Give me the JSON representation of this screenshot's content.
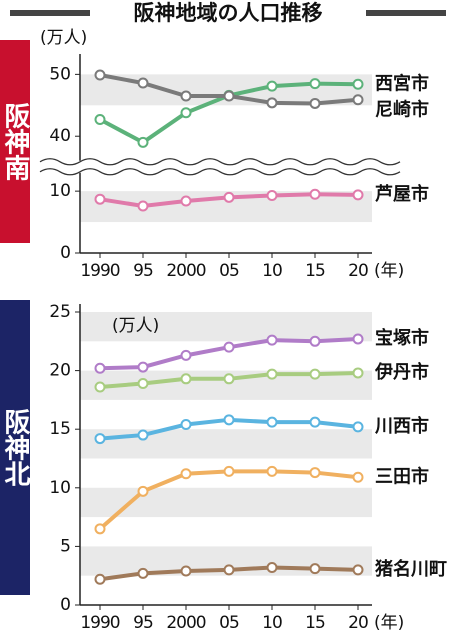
{
  "title": "阪神地域の人口推移",
  "chart_data": [
    {
      "type": "line",
      "panel_label": "阪神南",
      "y_label": "(万人)",
      "x_label": "(年)",
      "categories": [
        "1990",
        "95",
        "2000",
        "05",
        "10",
        "15",
        "20"
      ],
      "ylim": [
        0,
        52
      ],
      "axis_break": [
        12,
        37
      ],
      "yticks": [
        0,
        10,
        40,
        50
      ],
      "grid": "bands",
      "panel_color": "#c8102e",
      "series": [
        {
          "name": "西宮市",
          "color": "#5cb27a",
          "values": [
            42.7,
            39.0,
            43.8,
            46.6,
            48.1,
            48.5,
            48.4
          ]
        },
        {
          "name": "尼崎市",
          "color": "#7a7a7a",
          "values": [
            49.9,
            48.6,
            46.5,
            46.5,
            45.4,
            45.3,
            45.9
          ]
        },
        {
          "name": "芦屋市",
          "color": "#e07aaa",
          "values": [
            8.7,
            7.6,
            8.4,
            9.0,
            9.3,
            9.5,
            9.4
          ]
        }
      ]
    },
    {
      "type": "line",
      "panel_label": "阪神北",
      "y_label": "(万人)",
      "x_label": "(年)",
      "categories": [
        "1990",
        "95",
        "2000",
        "05",
        "10",
        "15",
        "20"
      ],
      "ylim": [
        0,
        25
      ],
      "yticks": [
        0,
        5,
        10,
        15,
        20,
        25
      ],
      "grid": "bands",
      "panel_color": "#1c2466",
      "series": [
        {
          "name": "宝塚市",
          "color": "#b07cc8",
          "values": [
            20.2,
            20.3,
            21.3,
            22.0,
            22.6,
            22.5,
            22.7
          ]
        },
        {
          "name": "伊丹市",
          "color": "#a8cc80",
          "values": [
            18.6,
            18.9,
            19.3,
            19.3,
            19.7,
            19.7,
            19.8
          ]
        },
        {
          "name": "川西市",
          "color": "#5ab4e0",
          "values": [
            14.2,
            14.5,
            15.4,
            15.8,
            15.6,
            15.6,
            15.2
          ]
        },
        {
          "name": "三田市",
          "color": "#f0b060",
          "values": [
            6.5,
            9.7,
            11.2,
            11.4,
            11.4,
            11.3,
            10.9
          ]
        },
        {
          "name": "猪名川町",
          "color": "#a07a5a",
          "values": [
            2.2,
            2.7,
            2.9,
            3.0,
            3.2,
            3.1,
            3.0
          ]
        }
      ]
    }
  ]
}
